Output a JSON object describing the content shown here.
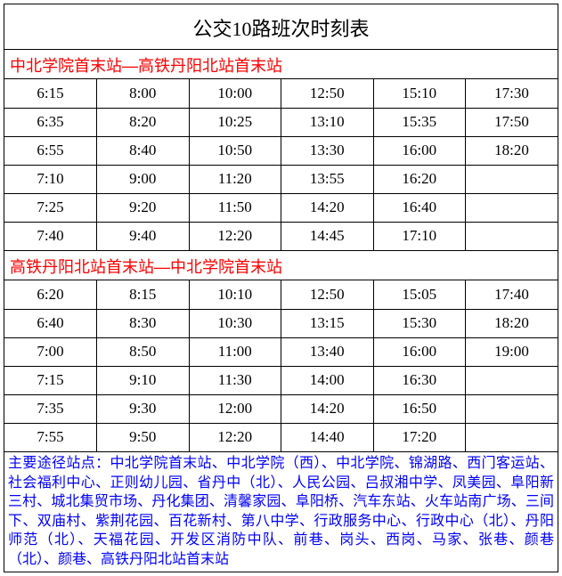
{
  "title": "公交10路班次时刻表",
  "section1": {
    "header": "中北学院首末站—高铁丹阳北站首末站",
    "rows": [
      [
        "6:15",
        "8:00",
        "10:00",
        "12:50",
        "15:10",
        "17:30"
      ],
      [
        "6:35",
        "8:20",
        "10:25",
        "13:10",
        "15:35",
        "17:50"
      ],
      [
        "6:55",
        "8:40",
        "10:50",
        "13:30",
        "16:00",
        "18:20"
      ],
      [
        "7:10",
        "9:00",
        "11:20",
        "13:55",
        "16:20",
        ""
      ],
      [
        "7:25",
        "9:20",
        "11:50",
        "14:20",
        "16:40",
        ""
      ],
      [
        "7:40",
        "9:40",
        "12:20",
        "14:45",
        "17:10",
        ""
      ]
    ]
  },
  "section2": {
    "header": "高铁丹阳北站首末站—中北学院首末站",
    "rows": [
      [
        "6:20",
        "8:15",
        "10:10",
        "12:50",
        "15:05",
        "17:40"
      ],
      [
        "6:40",
        "8:30",
        "10:30",
        "13:15",
        "15:30",
        "18:20"
      ],
      [
        "7:00",
        "8:50",
        "11:00",
        "13:40",
        "16:00",
        "19:00"
      ],
      [
        "7:15",
        "9:10",
        "11:30",
        "14:00",
        "16:30",
        ""
      ],
      [
        "7:35",
        "9:30",
        "12:00",
        "14:20",
        "16:50",
        ""
      ],
      [
        "7:55",
        "9:50",
        "12:20",
        "14:40",
        "17:20",
        ""
      ]
    ]
  },
  "footer": "主要途径站点：中北学院首末站、中北学院（西）、中北学院、锦湖路、西门客运站、社会福利中心、正则幼儿园、省丹中（北）、人民公园、吕叔湘中学、凤美园、阜阳新三村、城北集贸市场、丹化集团、清馨家园、阜阳桥、汽车东站、火车站南广场、三间下、双庙村、紫荆花园、百花新村、第八中学、行政服务中心、行政中心（北）、丹阳师范（北）、天福花园、开发区消防中队、前巷、岗头、西岗、马家、张巷、颜巷（北）、颜巷、高铁丹阳北站首末站",
  "colors": {
    "header_text": "#ff0000",
    "footer_text": "#0000ff",
    "border": "#000000",
    "background": "#ffffff"
  }
}
